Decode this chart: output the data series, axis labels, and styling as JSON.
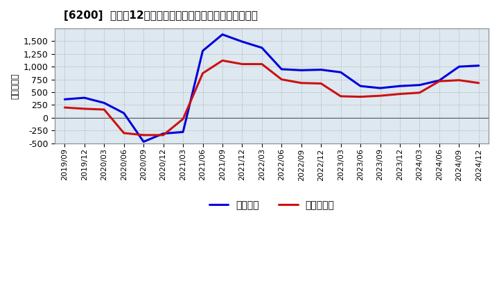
{
  "title": "[6200]  利益だ12か月移動合計の対前年同期増減額の推移",
  "ylabel": "（百万円）",
  "background_color": "#ffffff",
  "grid_color": "#aaaaaa",
  "plot_bg_color": "#dde8f0",
  "ylim": [
    -500,
    1750
  ],
  "yticks": [
    -500,
    -250,
    0,
    250,
    500,
    750,
    1000,
    1250,
    1500
  ],
  "legend_labels": [
    "経常利益",
    "当期純利益"
  ],
  "line_colors": [
    "#0000dd",
    "#cc1111"
  ],
  "dates": [
    "2019/09",
    "2019/12",
    "2020/03",
    "2020/06",
    "2020/09",
    "2020/12",
    "2021/03",
    "2021/06",
    "2021/09",
    "2021/12",
    "2022/03",
    "2022/06",
    "2022/09",
    "2022/12",
    "2023/03",
    "2023/06",
    "2023/09",
    "2023/12",
    "2024/03",
    "2024/06",
    "2024/09",
    "2024/12"
  ],
  "keijo_rieki": [
    360,
    390,
    290,
    90,
    -470,
    -310,
    -280,
    1310,
    1630,
    1490,
    1370,
    950,
    930,
    940,
    890,
    620,
    580,
    620,
    640,
    730,
    1000,
    1020
  ],
  "touki_junrieki": [
    200,
    175,
    160,
    -300,
    -340,
    -340,
    -25,
    870,
    1120,
    1050,
    1050,
    750,
    680,
    670,
    420,
    410,
    430,
    465,
    490,
    715,
    735,
    680
  ]
}
